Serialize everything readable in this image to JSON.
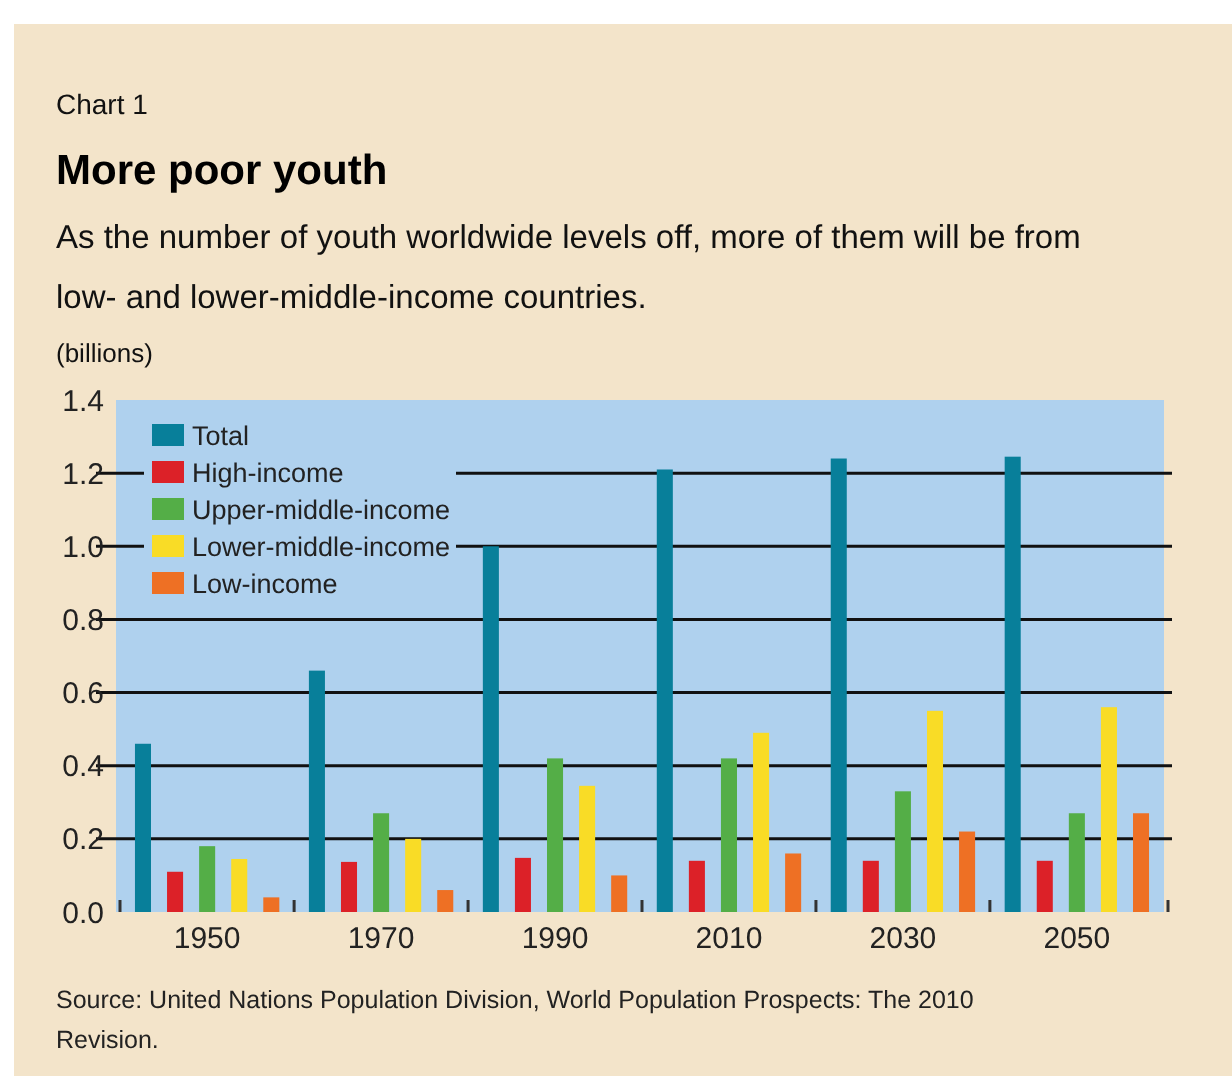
{
  "chart_data": {
    "type": "bar",
    "title": "More poor youth",
    "subtitle": "As the number of youth worldwide levels off, more of them will be from low- and lower-middle-income countries.",
    "ylabel": "(billions)",
    "annotations": [
      "Chart 1",
      "Source: United Nations Population Division, World Population Prospects: The 2010 Revision."
    ],
    "categories": [
      "1950",
      "1970",
      "1990",
      "2010",
      "2030",
      "2050"
    ],
    "series": [
      {
        "name": "Total",
        "color": "#087f9a",
        "values": [
          0.46,
          0.66,
          1.0,
          1.21,
          1.24,
          1.245
        ]
      },
      {
        "name": "High-income",
        "color": "#dc2128",
        "values": [
          0.11,
          0.137,
          0.148,
          0.14,
          0.14,
          0.14
        ]
      },
      {
        "name": "Upper-middle-income",
        "color": "#54ae47",
        "values": [
          0.18,
          0.27,
          0.42,
          0.42,
          0.33,
          0.27
        ]
      },
      {
        "name": "Lower-middle-income",
        "color": "#f9dc26",
        "values": [
          0.145,
          0.2,
          0.345,
          0.49,
          0.55,
          0.56
        ]
      },
      {
        "name": "Low-income",
        "color": "#ee7024",
        "values": [
          0.04,
          0.06,
          0.1,
          0.16,
          0.22,
          0.27
        ]
      }
    ],
    "ylim": [
      0,
      1.4
    ],
    "yticks": [
      {
        "value": 0,
        "label": "0.0"
      },
      {
        "value": 0.2,
        "label": "0.2"
      },
      {
        "value": 0.4,
        "label": "0.4"
      },
      {
        "value": 0.6,
        "label": "0.6"
      },
      {
        "value": 0.8,
        "label": "0.8"
      },
      {
        "value": 1,
        "label": "1.0"
      },
      {
        "value": 1.2,
        "label": "1.2"
      },
      {
        "value": 1.4,
        "label": "1.4"
      }
    ],
    "grid": "y",
    "legend": "top left"
  }
}
